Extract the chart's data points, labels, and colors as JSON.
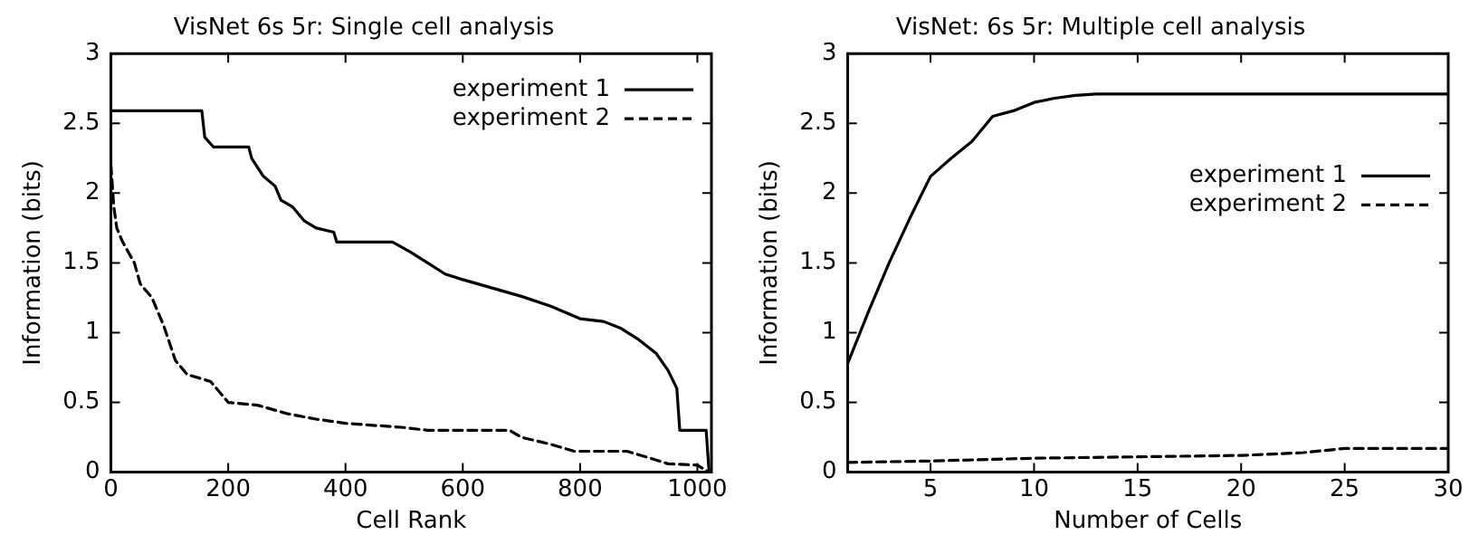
{
  "chart_data": [
    {
      "type": "line",
      "title": "VisNet 6s 5r: Single cell analysis",
      "xlabel": "Cell Rank",
      "ylabel": "Information (bits)",
      "xlim": [
        0,
        1024
      ],
      "xticks": [
        0,
        200,
        400,
        600,
        800,
        1000
      ],
      "ylim": [
        0,
        3
      ],
      "yticks": [
        0,
        0.5,
        1,
        1.5,
        2,
        2.5,
        3
      ],
      "grid": false,
      "legend": "top right",
      "marker": "none",
      "series": [
        {
          "name": "experiment 1",
          "color": "#000000",
          "line_style": "solid",
          "x": [
            0,
            155,
            160,
            175,
            235,
            240,
            260,
            280,
            290,
            310,
            330,
            350,
            380,
            385,
            480,
            510,
            540,
            570,
            600,
            650,
            700,
            750,
            800,
            840,
            870,
            900,
            930,
            950,
            965,
            970,
            1015,
            1020
          ],
          "values": [
            2.59,
            2.59,
            2.4,
            2.33,
            2.33,
            2.25,
            2.12,
            2.05,
            1.95,
            1.9,
            1.8,
            1.75,
            1.72,
            1.65,
            1.65,
            1.58,
            1.5,
            1.42,
            1.38,
            1.32,
            1.26,
            1.19,
            1.1,
            1.08,
            1.03,
            0.95,
            0.85,
            0.73,
            0.6,
            0.3,
            0.3,
            0
          ]
        },
        {
          "name": "experiment 2",
          "color": "#000000",
          "line_style": "dashed",
          "x": [
            0,
            5,
            10,
            20,
            40,
            50,
            70,
            90,
            110,
            130,
            170,
            200,
            250,
            300,
            350,
            400,
            500,
            540,
            680,
            700,
            750,
            790,
            880,
            920,
            950,
            1000,
            1020
          ],
          "values": [
            2.2,
            1.9,
            1.75,
            1.65,
            1.5,
            1.35,
            1.25,
            1.05,
            0.8,
            0.7,
            0.65,
            0.5,
            0.48,
            0.42,
            0.38,
            0.35,
            0.32,
            0.3,
            0.3,
            0.25,
            0.2,
            0.15,
            0.15,
            0.1,
            0.06,
            0.05,
            0
          ]
        }
      ]
    },
    {
      "type": "line",
      "title": "VisNet: 6s 5r: Multiple cell analysis",
      "xlabel": "Number of Cells",
      "ylabel": "Information (bits)",
      "xlim": [
        1,
        30
      ],
      "xticks": [
        5,
        10,
        15,
        20,
        25,
        30
      ],
      "ylim": [
        0,
        3
      ],
      "yticks": [
        0,
        0.5,
        1,
        1.5,
        2,
        2.5,
        3
      ],
      "grid": false,
      "legend": "right",
      "marker": "none",
      "series": [
        {
          "name": "experiment 1",
          "color": "#000000",
          "line_style": "solid",
          "x": [
            1,
            2,
            3,
            4,
            5,
            6,
            7,
            8,
            9,
            10,
            11,
            12,
            13,
            30
          ],
          "values": [
            0.78,
            1.15,
            1.5,
            1.82,
            2.12,
            2.25,
            2.37,
            2.55,
            2.59,
            2.65,
            2.68,
            2.7,
            2.71,
            2.71
          ]
        },
        {
          "name": "experiment 2",
          "color": "#000000",
          "line_style": "dashed",
          "x": [
            1,
            5,
            10,
            15,
            20,
            23,
            25,
            30
          ],
          "values": [
            0.07,
            0.08,
            0.1,
            0.11,
            0.12,
            0.14,
            0.17,
            0.17
          ]
        }
      ]
    }
  ]
}
